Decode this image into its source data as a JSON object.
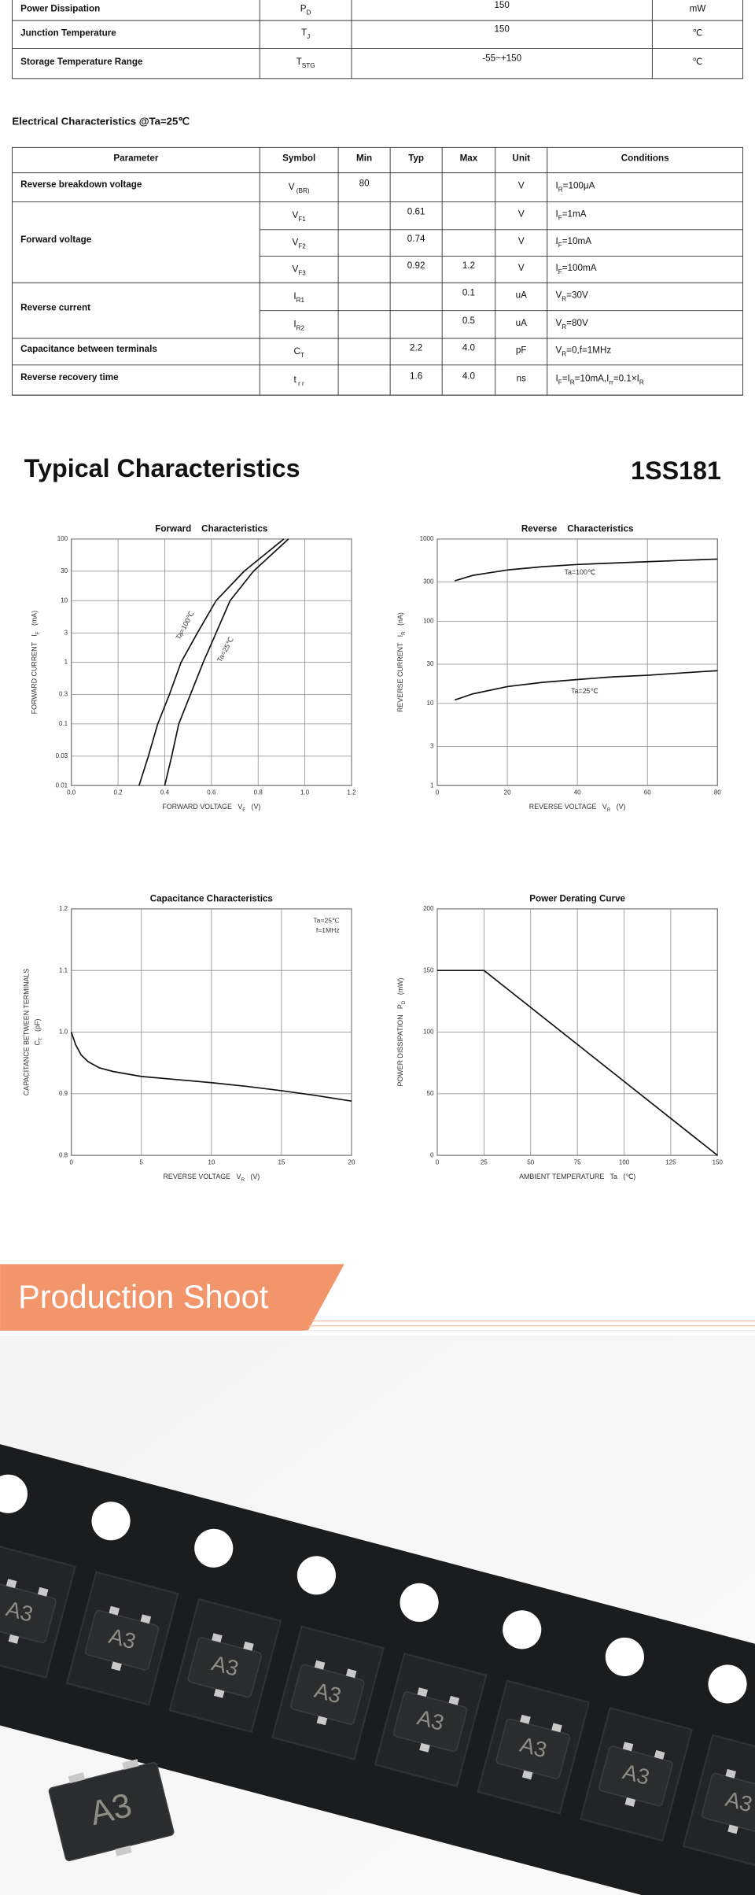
{
  "max_ratings": {
    "rows": [
      {
        "parameter": "Power Dissipation",
        "symbol": [
          "P",
          {
            "sub": "D"
          }
        ],
        "value": 150,
        "unit": "mW"
      },
      {
        "parameter": "Junction Temperature",
        "symbol": [
          "T",
          {
            "sub": "J"
          }
        ],
        "value": 150,
        "unit": "℃"
      },
      {
        "parameter": "Storage Temperature Range",
        "symbol": [
          "T",
          {
            "sub": "STG"
          }
        ],
        "value": "-55~+150",
        "unit": "℃"
      }
    ]
  },
  "electrical_characteristics": {
    "title": "Electrical Characteristics @Ta=25℃",
    "header": [
      "Parameter",
      "Symbol",
      "Min",
      "Typ",
      "Max",
      "Unit",
      "Conditions"
    ],
    "groups": [
      {
        "parameter": "Reverse breakdown voltage",
        "rows": [
          {
            "symbol": [
              "V",
              {
                "sub": " (BR)"
              }
            ],
            "min": 80,
            "unit": "V",
            "conditions": [
              "I",
              {
                "sub": "R"
              },
              "=100μA"
            ]
          }
        ]
      },
      {
        "parameter": "Forward voltage",
        "rows": [
          {
            "symbol": [
              "V",
              {
                "sub": "F1"
              }
            ],
            "typ": 0.61,
            "unit": "V",
            "conditions": [
              "I",
              {
                "sub": "F"
              },
              "=1mA"
            ]
          },
          {
            "symbol": [
              "V",
              {
                "sub": "F2"
              }
            ],
            "typ": 0.74,
            "unit": "V",
            "conditions": [
              "I",
              {
                "sub": "F"
              },
              "=10mA"
            ]
          },
          {
            "symbol": [
              "V",
              {
                "sub": "F3"
              }
            ],
            "typ": 0.92,
            "max": 1.2,
            "unit": "V",
            "conditions": [
              "I",
              {
                "sub": "F"
              },
              "=100mA"
            ]
          }
        ]
      },
      {
        "parameter": "Reverse current",
        "rows": [
          {
            "symbol": [
              "I",
              {
                "sub": "R1"
              }
            ],
            "max": 0.1,
            "unit": "uA",
            "conditions": [
              "V",
              {
                "sub": "R"
              },
              "=30V"
            ]
          },
          {
            "symbol": [
              "I",
              {
                "sub": "R2"
              }
            ],
            "max": 0.5,
            "unit": "uA",
            "conditions": [
              "V",
              {
                "sub": "R"
              },
              "=80V"
            ]
          }
        ]
      },
      {
        "parameter": "Capacitance between terminals",
        "rows": [
          {
            "symbol": [
              "C",
              {
                "sub": "T"
              }
            ],
            "typ": 2.2,
            "max": "4.0",
            "unit": "pF",
            "conditions": [
              "V",
              {
                "sub": "R"
              },
              "=0,f=1MHz"
            ]
          }
        ]
      },
      {
        "parameter": "Reverse recovery time",
        "rows": [
          {
            "symbol": [
              "t",
              {
                "sub": " r r"
              }
            ],
            "typ": 1.6,
            "max": "4.0",
            "unit": "ns",
            "conditions": [
              "I",
              {
                "sub": "F"
              },
              "=I",
              {
                "sub": "R"
              },
              "=10mA,I",
              {
                "sub": "rr"
              },
              "=0.1×I",
              {
                "sub": "R"
              }
            ]
          }
        ]
      }
    ]
  },
  "typical": {
    "title": "Typical Characteristics",
    "part_number": "1SS181"
  },
  "chart_data": [
    {
      "type": "line",
      "title": "Forward    Characteristics",
      "xlabel": [
        "FORWARD VOLTAGE   V",
        {
          "sub": "F"
        },
        "   (V)"
      ],
      "ylabel": [
        [
          "FORWARD CURRENT   I",
          {
            "sub": "F"
          },
          "   (mA)"
        ]
      ],
      "xlim": [
        0,
        1.2
      ],
      "xticks": [
        {
          "value": 0,
          "label": "0.0"
        },
        0.2,
        0.4,
        0.6,
        0.8,
        {
          "value": 1,
          "label": "1.0"
        },
        1.2
      ],
      "ylim": [
        0.01,
        100
      ],
      "yticks": [
        0.01,
        0.03,
        0.1,
        0.3,
        1,
        3,
        10,
        30,
        100
      ],
      "yscale": "log",
      "grid": true,
      "series": [
        {
          "name": "Ta=100℃",
          "color": "#111111",
          "x": [
            0.29,
            0.33,
            0.37,
            0.42,
            0.47,
            0.54,
            0.62,
            0.74,
            0.91
          ],
          "values": [
            0.01,
            0.03,
            0.1,
            0.3,
            1,
            3,
            10,
            30,
            100
          ]
        },
        {
          "name": "Ta=25℃",
          "color": "#111111",
          "x": [
            0.4,
            0.43,
            0.46,
            0.51,
            0.565,
            0.62,
            0.68,
            0.78,
            0.93
          ],
          "values": [
            0.01,
            0.03,
            0.1,
            0.3,
            1,
            3,
            10,
            30,
            100
          ]
        }
      ]
    },
    {
      "type": "line",
      "title": "Reverse    Characteristics",
      "xlabel": [
        "REVERSE VOLTAGE   V",
        {
          "sub": "R"
        },
        "   (V)"
      ],
      "ylabel": [
        [
          "REVERSE CURRENT   I",
          {
            "sub": "R"
          },
          "   (nA)"
        ]
      ],
      "xlim": [
        0,
        80
      ],
      "xticks": [
        0,
        20,
        40,
        60,
        80
      ],
      "ylim": [
        1,
        1000
      ],
      "yticks": [
        1,
        3,
        10,
        30,
        100,
        300,
        1000
      ],
      "yscale": "log",
      "grid": true,
      "series": [
        {
          "name": "Ta=100℃",
          "color": "#111111",
          "x": [
            5,
            10,
            20,
            30,
            40,
            50,
            60,
            70,
            80
          ],
          "values": [
            310,
            360,
            420,
            460,
            490,
            510,
            530,
            550,
            570
          ]
        },
        {
          "name": "Ta=25℃",
          "color": "#111111",
          "x": [
            5,
            10,
            20,
            30,
            40,
            50,
            60,
            70,
            80
          ],
          "values": [
            11,
            13,
            16,
            18,
            19.5,
            21,
            22,
            23.5,
            25
          ]
        }
      ]
    },
    {
      "type": "line",
      "title": "Capacitance Characteristics",
      "xlabel": [
        "REVERSE VOLTAGE   V",
        {
          "sub": "R"
        },
        "   (V)"
      ],
      "ylabel": [
        [
          "CAPACITANCE BETWEEN TERMINALS"
        ],
        [
          "C",
          {
            "sub": "T"
          },
          "   (pF)"
        ]
      ],
      "annotations": [
        "Ta=25℃",
        "f=1MHz"
      ],
      "xlim": [
        0,
        20
      ],
      "xticks": [
        0,
        5,
        10,
        15,
        20
      ],
      "ylim": [
        0.8,
        1.2
      ],
      "yticks": [
        0.8,
        0.9,
        {
          "value": 1,
          "label": "1.0"
        },
        1.1,
        1.2
      ],
      "grid": true,
      "series": [
        {
          "color": "#111111",
          "x": [
            0,
            0.3,
            0.7,
            1.2,
            2,
            3,
            5,
            7.5,
            10,
            12.5,
            15,
            17.5,
            20
          ],
          "values": [
            1.0,
            0.98,
            0.963,
            0.952,
            0.942,
            0.936,
            0.928,
            0.923,
            0.918,
            0.912,
            0.905,
            0.897,
            0.888
          ]
        }
      ]
    },
    {
      "type": "line",
      "title": "Power Derating Curve",
      "xlabel": [
        "AMBIENT TEMPERATURE   Ta   (℃)"
      ],
      "ylabel": [
        [
          "POWER DISSIPATION   P",
          {
            "sub": "D"
          },
          "   (mW)"
        ]
      ],
      "xlim": [
        0,
        150
      ],
      "xticks": [
        0,
        25,
        50,
        75,
        100,
        125,
        150
      ],
      "ylim": [
        0,
        200
      ],
      "yticks": [
        0,
        50,
        100,
        150,
        200
      ],
      "grid": true,
      "series": [
        {
          "color": "#111111",
          "x": [
            0,
            25,
            150
          ],
          "values": [
            150,
            150,
            0
          ]
        }
      ]
    }
  ],
  "production": {
    "banner": "Production Shoot",
    "marking": "A3"
  }
}
